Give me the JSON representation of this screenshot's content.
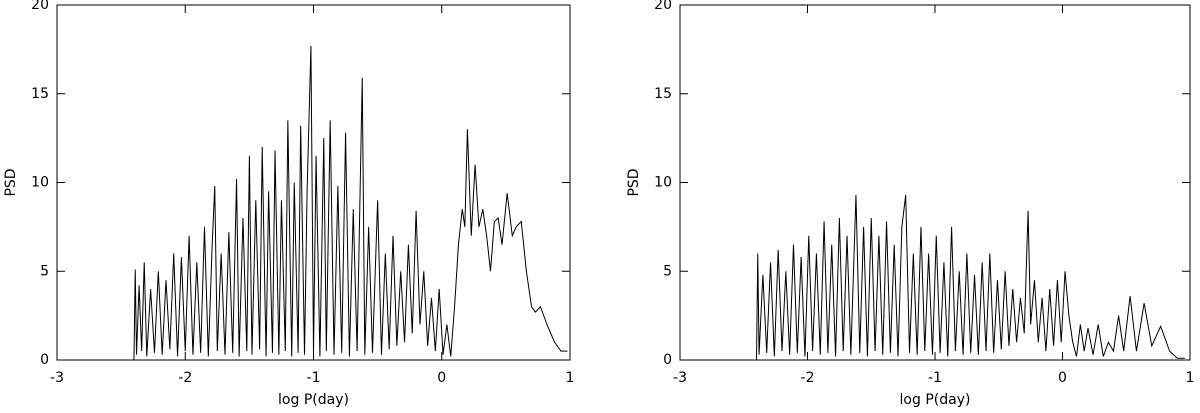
{
  "chart_data": [
    {
      "type": "line",
      "xlabel": "log P(day)",
      "ylabel": "PSD",
      "color": "#000000",
      "xlim": [
        -3,
        1
      ],
      "ylim": [
        0,
        20
      ],
      "xticks": [
        -3,
        -2,
        -1,
        0,
        1
      ],
      "yticks": [
        0,
        5,
        10,
        15,
        20
      ],
      "x": [
        -2.4,
        -2.39,
        -2.38,
        -2.36,
        -2.34,
        -2.32,
        -2.3,
        -2.27,
        -2.24,
        -2.21,
        -2.18,
        -2.15,
        -2.12,
        -2.09,
        -2.06,
        -2.03,
        -2.0,
        -1.97,
        -1.94,
        -1.91,
        -1.88,
        -1.85,
        -1.82,
        -1.79,
        -1.77,
        -1.75,
        -1.72,
        -1.69,
        -1.66,
        -1.63,
        -1.6,
        -1.58,
        -1.55,
        -1.52,
        -1.5,
        -1.48,
        -1.45,
        -1.42,
        -1.4,
        -1.37,
        -1.35,
        -1.32,
        -1.3,
        -1.27,
        -1.25,
        -1.22,
        -1.2,
        -1.17,
        -1.15,
        -1.12,
        -1.1,
        -1.07,
        -1.05,
        -1.02,
        -1.0,
        -0.98,
        -0.95,
        -0.92,
        -0.9,
        -0.87,
        -0.84,
        -0.81,
        -0.78,
        -0.75,
        -0.72,
        -0.69,
        -0.66,
        -0.62,
        -0.6,
        -0.57,
        -0.54,
        -0.5,
        -0.47,
        -0.44,
        -0.41,
        -0.38,
        -0.35,
        -0.32,
        -0.29,
        -0.26,
        -0.23,
        -0.2,
        -0.17,
        -0.14,
        -0.11,
        -0.08,
        -0.05,
        -0.02,
        0.01,
        0.04,
        0.07,
        0.1,
        0.13,
        0.16,
        0.18,
        0.2,
        0.23,
        0.26,
        0.29,
        0.32,
        0.35,
        0.38,
        0.41,
        0.44,
        0.47,
        0.51,
        0.55,
        0.58,
        0.62,
        0.66,
        0.7,
        0.73,
        0.77,
        0.82,
        0.88,
        0.93,
        0.98
      ],
      "values": [
        0,
        5.1,
        0.3,
        4.2,
        0.5,
        5.5,
        0.2,
        4.0,
        0.4,
        5.0,
        0.3,
        4.5,
        0.6,
        6.0,
        0.2,
        5.8,
        0.5,
        7.0,
        0.3,
        5.5,
        0.4,
        7.5,
        0.2,
        6.5,
        9.8,
        0.5,
        6.0,
        0.3,
        7.2,
        0.4,
        10.2,
        0.2,
        8.0,
        0.5,
        11.5,
        0.3,
        9.0,
        0.6,
        12.0,
        0.2,
        9.5,
        0.4,
        11.8,
        0.3,
        9.0,
        0.5,
        13.5,
        0.2,
        10.0,
        0.4,
        13.2,
        0.3,
        9.5,
        17.7,
        0.4,
        11.5,
        0.2,
        12.5,
        0.5,
        13.5,
        0.3,
        9.8,
        0.4,
        12.8,
        0.2,
        8.5,
        0.5,
        15.9,
        0.3,
        7.5,
        0.4,
        9.0,
        0.3,
        6.0,
        0.6,
        7.0,
        0.8,
        5.0,
        1.0,
        6.5,
        1.5,
        8.4,
        2.0,
        5.0,
        0.8,
        3.5,
        0.5,
        4.0,
        0.3,
        2.0,
        0.2,
        3.0,
        6.5,
        8.5,
        7.5,
        13.0,
        7.0,
        11.0,
        7.5,
        8.5,
        7.0,
        5.0,
        7.8,
        8.0,
        6.5,
        9.4,
        7.0,
        7.5,
        7.8,
        5.0,
        3.0,
        2.7,
        3.0,
        2.0,
        1.0,
        0.5,
        0.5
      ]
    },
    {
      "type": "line",
      "xlabel": "log P(day)",
      "ylabel": "PSD",
      "color": "#000000",
      "xlim": [
        -3,
        1
      ],
      "ylim": [
        0,
        20
      ],
      "xticks": [
        -3,
        -2,
        -1,
        0,
        1
      ],
      "yticks": [
        0,
        5,
        10,
        15,
        20
      ],
      "x": [
        -2.4,
        -2.39,
        -2.38,
        -2.35,
        -2.32,
        -2.29,
        -2.26,
        -2.23,
        -2.2,
        -2.17,
        -2.14,
        -2.11,
        -2.08,
        -2.05,
        -2.02,
        -1.99,
        -1.96,
        -1.93,
        -1.9,
        -1.87,
        -1.84,
        -1.81,
        -1.78,
        -1.75,
        -1.72,
        -1.69,
        -1.66,
        -1.62,
        -1.59,
        -1.56,
        -1.53,
        -1.5,
        -1.47,
        -1.44,
        -1.41,
        -1.38,
        -1.35,
        -1.32,
        -1.29,
        -1.26,
        -1.23,
        -1.2,
        -1.17,
        -1.14,
        -1.11,
        -1.08,
        -1.05,
        -1.02,
        -0.99,
        -0.96,
        -0.93,
        -0.9,
        -0.87,
        -0.84,
        -0.81,
        -0.78,
        -0.75,
        -0.72,
        -0.69,
        -0.66,
        -0.63,
        -0.6,
        -0.57,
        -0.54,
        -0.51,
        -0.48,
        -0.45,
        -0.42,
        -0.39,
        -0.36,
        -0.33,
        -0.3,
        -0.27,
        -0.25,
        -0.22,
        -0.19,
        -0.16,
        -0.13,
        -0.1,
        -0.07,
        -0.04,
        -0.01,
        0.02,
        0.05,
        0.08,
        0.11,
        0.14,
        0.17,
        0.2,
        0.24,
        0.28,
        0.32,
        0.36,
        0.4,
        0.44,
        0.48,
        0.53,
        0.58,
        0.64,
        0.7,
        0.77,
        0.84,
        0.9,
        0.96
      ],
      "values": [
        0,
        6.0,
        0.3,
        4.8,
        0.4,
        5.5,
        0.2,
        6.2,
        0.5,
        5.0,
        0.3,
        6.5,
        0.4,
        5.8,
        0.2,
        7.0,
        0.5,
        6.0,
        0.3,
        7.8,
        0.4,
        6.5,
        0.2,
        8.0,
        0.5,
        7.0,
        0.3,
        9.3,
        0.4,
        7.5,
        0.2,
        8.0,
        0.5,
        7.0,
        0.3,
        7.8,
        0.4,
        6.5,
        0.2,
        7.5,
        9.3,
        0.4,
        6.0,
        0.3,
        7.5,
        0.5,
        6.0,
        0.3,
        7.0,
        0.4,
        5.5,
        0.2,
        7.5,
        0.5,
        5.0,
        0.3,
        6.0,
        0.4,
        4.8,
        0.3,
        5.5,
        0.5,
        6.0,
        0.4,
        4.5,
        0.6,
        5.0,
        0.8,
        4.0,
        1.0,
        3.5,
        1.5,
        8.4,
        2.0,
        4.5,
        1.0,
        3.5,
        0.5,
        4.0,
        0.8,
        4.5,
        1.0,
        5.0,
        2.5,
        1.0,
        0.2,
        2.0,
        0.5,
        1.8,
        0.3,
        2.0,
        0.2,
        1.0,
        0.5,
        2.5,
        0.5,
        3.6,
        0.5,
        3.2,
        0.8,
        1.9,
        0.5,
        0.1,
        0.1
      ]
    }
  ]
}
